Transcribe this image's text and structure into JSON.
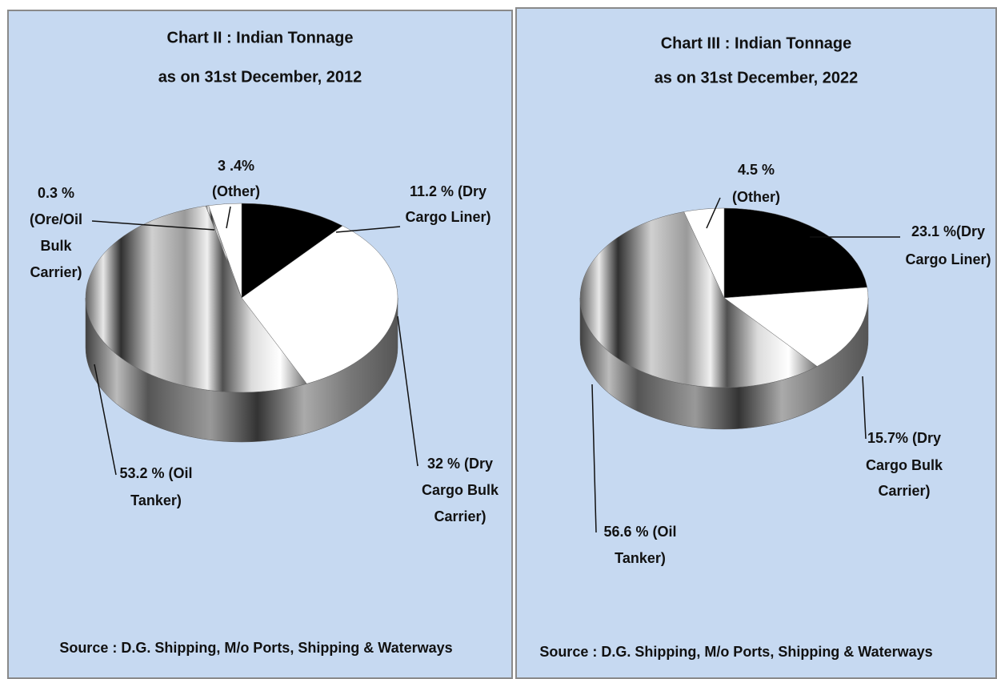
{
  "chart_data": [
    {
      "type": "pie",
      "title": [
        "Chart II : Indian Tonnage",
        "as on 31st December, 2012"
      ],
      "values": [
        11.2,
        32,
        53.2,
        0.3,
        3.4
      ],
      "value_labels": [
        [
          "11.2 % (Dry",
          "Cargo Liner)"
        ],
        [
          "32 % (Dry",
          "Cargo Bulk",
          "Carrier)"
        ],
        [
          "53.2 % (Oil",
          "Tanker)"
        ],
        [
          "0.3 %",
          "(Ore/Oil",
          "Bulk",
          "Carrier)"
        ],
        [
          "3 .4%",
          "(Other)"
        ]
      ],
      "colors": [
        "#000000",
        "#ffffff",
        "#b0b0b0",
        "#808080",
        "#ffffff"
      ],
      "source": "Source : D.G. Shipping, M/o Ports, Shipping & Waterways"
    },
    {
      "type": "pie",
      "title": [
        "Chart III : Indian Tonnage",
        "as on 31st December, 2022"
      ],
      "values": [
        23.1,
        15.7,
        56.6,
        4.5
      ],
      "value_labels": [
        [
          "23.1 %(Dry",
          "Cargo Liner)"
        ],
        [
          "15.7% (Dry",
          "Cargo Bulk",
          "Carrier)"
        ],
        [
          "56.6  % (Oil",
          "Tanker)"
        ],
        [
          "4.5 %",
          "(Other)"
        ]
      ],
      "colors": [
        "#000000",
        "#ffffff",
        "#b0b0b0",
        "#ffffff"
      ],
      "source": "Source : D.G. Shipping, M/o Ports, Shipping & Waterways"
    }
  ]
}
